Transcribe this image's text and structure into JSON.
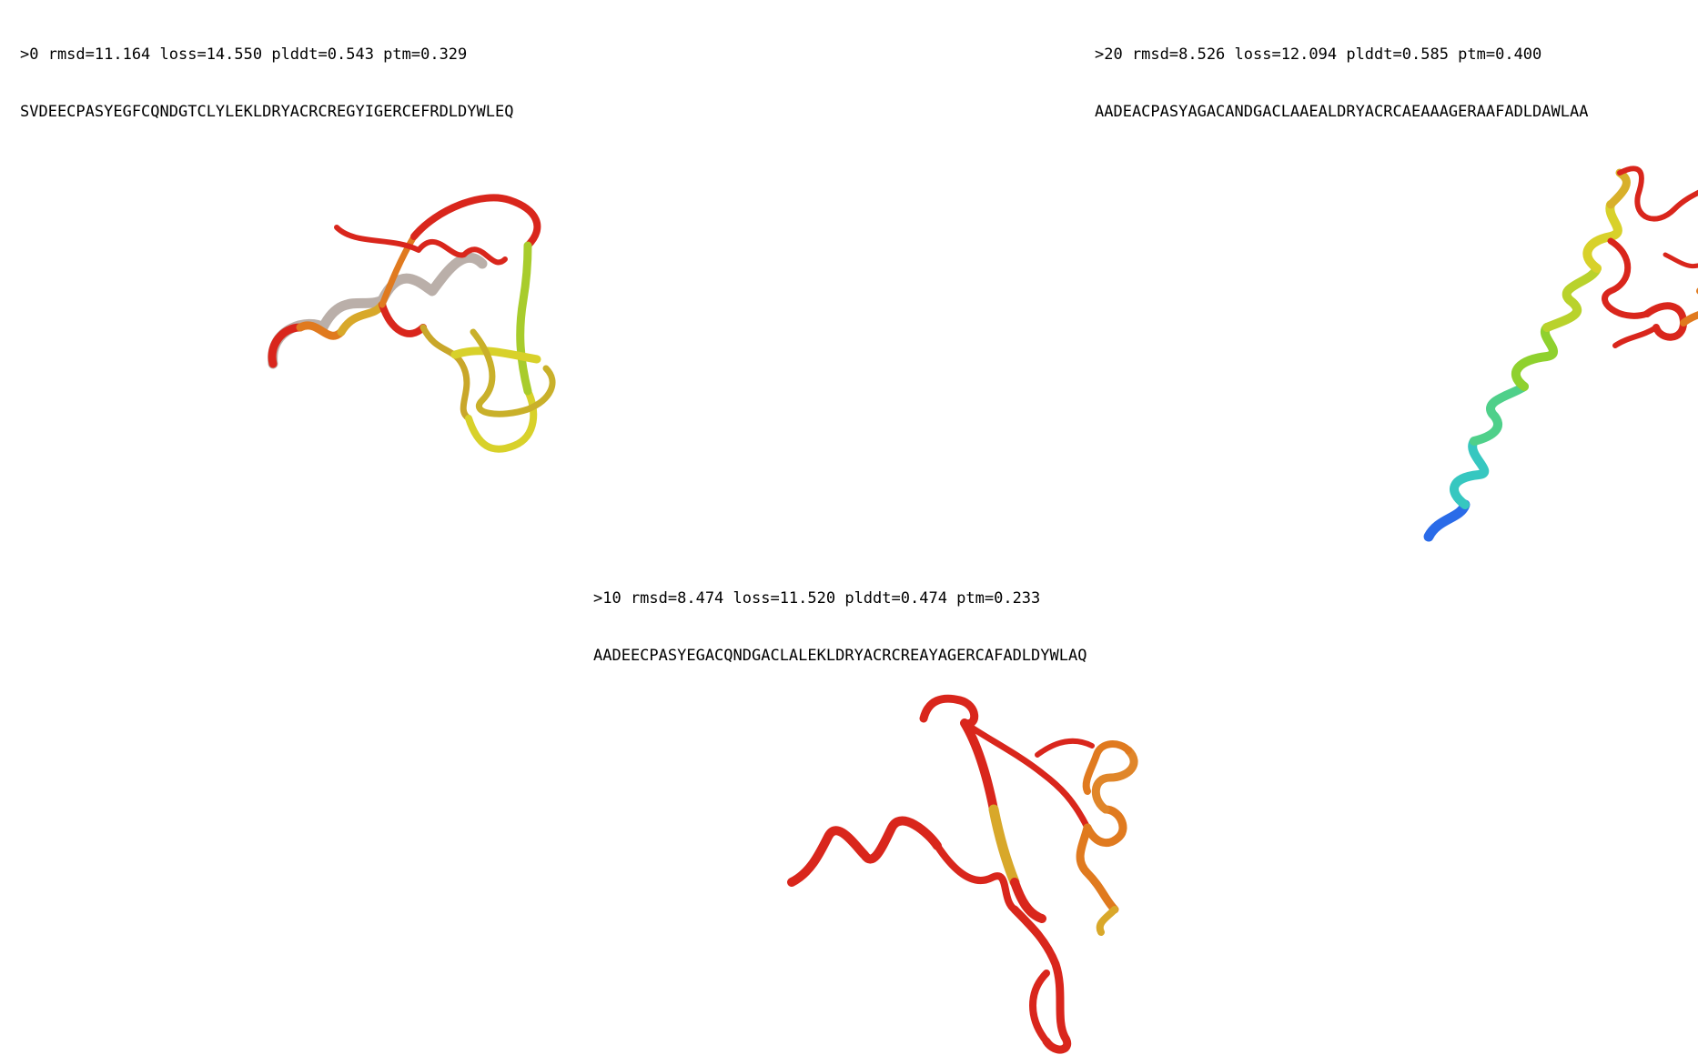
{
  "panels": [
    {
      "id": "design-0",
      "header": ">0 rmsd=11.164 loss=14.550 plddt=0.543 ptm=0.329",
      "sequence": "SVDEECPASYEGFCQNDGTCLYLEKLDRYACRCREGYIGERCEFRDLDYWLEQ"
    },
    {
      "id": "design-20",
      "header": ">20 rmsd=8.526 loss=12.094 plddt=0.585 ptm=0.400",
      "sequence": "AADEACPASYAGACANDGACLAAEALDRYACRCAEAAAGERAAFADLDAWLAA"
    },
    {
      "id": "design-10",
      "header": ">10 rmsd=8.474 loss=11.520 plddt=0.474 ptm=0.233",
      "sequence": "AADEECPASYEGACQNDGACLALEKLDRYACRCREAYAGERCAFADLDYWLAQ"
    }
  ],
  "colors": {
    "red": "#d9261c",
    "orange": "#e07a1f",
    "yellow": "#d8d12a",
    "green": "#8fd12e",
    "cyan": "#36c7c0",
    "blue": "#2a6be8"
  }
}
